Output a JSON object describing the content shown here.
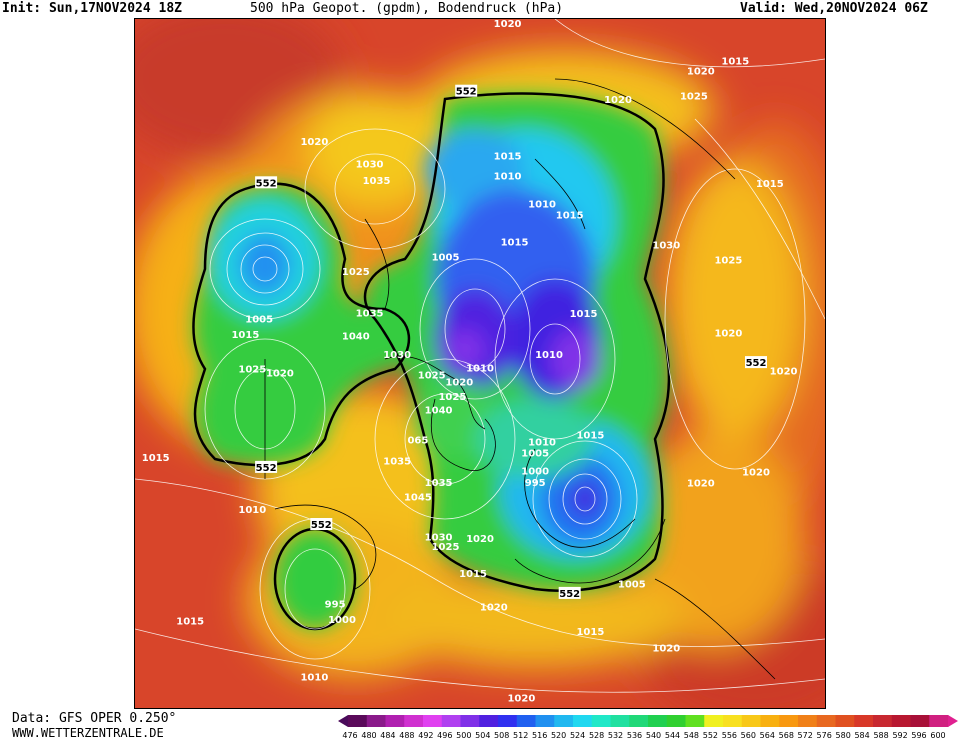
{
  "header": {
    "init": "Init: Sun,17NOV2024 18Z",
    "title": "500 hPa Geopot. (gpdm), Bodendruck (hPa)",
    "valid": "Valid: Wed,20NOV2024 06Z"
  },
  "footer": {
    "data_source": "Data: GFS OPER 0.250°",
    "website": "WWW.WETTERZENTRALE.DE"
  },
  "colorbar": {
    "ticks": [
      "476",
      "480",
      "484",
      "488",
      "492",
      "496",
      "500",
      "504",
      "508",
      "512",
      "516",
      "520",
      "524",
      "528",
      "532",
      "536",
      "540",
      "544",
      "548",
      "552",
      "556",
      "560",
      "564",
      "568",
      "572",
      "576",
      "580",
      "584",
      "588",
      "592",
      "596",
      "600"
    ],
    "colors": [
      "#5a0a5a",
      "#8a1a8a",
      "#b020b0",
      "#d030d0",
      "#e040f0",
      "#b040f0",
      "#8030e8",
      "#5020e0",
      "#3030f0",
      "#2060f0",
      "#2090f0",
      "#20b8f0",
      "#20d8f0",
      "#20e8c8",
      "#20e0a0",
      "#20d878",
      "#20d050",
      "#30d030",
      "#60e020",
      "#f0f020",
      "#f8e020",
      "#f8c818",
      "#f8b010",
      "#f89810",
      "#f08018",
      "#e86820",
      "#e05020",
      "#d83828",
      "#c82830",
      "#b81830",
      "#a81038",
      "#d02080"
    ],
    "left_arrow_color": "#4a0a5a",
    "right_arrow_color": "#e02090"
  },
  "map": {
    "geopotential_contour_label": "552",
    "pressure_labels": [
      {
        "text": "1020",
        "nx": 0.54,
        "ny": 0.006
      },
      {
        "text": "1015",
        "nx": 0.87,
        "ny": 0.06
      },
      {
        "text": "1020",
        "nx": 0.82,
        "ny": 0.075
      },
      {
        "text": "552",
        "nx": 0.48,
        "ny": 0.104
      },
      {
        "text": "1020",
        "nx": 0.7,
        "ny": 0.116
      },
      {
        "text": "1025",
        "nx": 0.81,
        "ny": 0.111
      },
      {
        "text": "1020",
        "nx": 0.26,
        "ny": 0.177
      },
      {
        "text": "1015",
        "nx": 0.54,
        "ny": 0.198
      },
      {
        "text": "1030",
        "nx": 0.34,
        "ny": 0.21
      },
      {
        "text": "1010",
        "nx": 0.54,
        "ny": 0.227
      },
      {
        "text": "1035",
        "nx": 0.35,
        "ny": 0.234
      },
      {
        "text": "552",
        "nx": 0.19,
        "ny": 0.237
      },
      {
        "text": "1015",
        "nx": 0.92,
        "ny": 0.238
      },
      {
        "text": "1010",
        "nx": 0.59,
        "ny": 0.268
      },
      {
        "text": "1015",
        "nx": 0.63,
        "ny": 0.284
      },
      {
        "text": "1015",
        "nx": 0.55,
        "ny": 0.323
      },
      {
        "text": "1030",
        "nx": 0.77,
        "ny": 0.327
      },
      {
        "text": "1005",
        "nx": 0.45,
        "ny": 0.345
      },
      {
        "text": "1025",
        "nx": 0.86,
        "ny": 0.349
      },
      {
        "text": "1025",
        "nx": 0.32,
        "ny": 0.366
      },
      {
        "text": "1035",
        "nx": 0.34,
        "ny": 0.426
      },
      {
        "text": "1005",
        "nx": 0.18,
        "ny": 0.435
      },
      {
        "text": "1015",
        "nx": 0.65,
        "ny": 0.427
      },
      {
        "text": "1040",
        "nx": 0.32,
        "ny": 0.459
      },
      {
        "text": "1015",
        "nx": 0.16,
        "ny": 0.457
      },
      {
        "text": "1020",
        "nx": 0.86,
        "ny": 0.455
      },
      {
        "text": "1030",
        "nx": 0.38,
        "ny": 0.486
      },
      {
        "text": "1010",
        "nx": 0.6,
        "ny": 0.486
      },
      {
        "text": "552",
        "nx": 0.9,
        "ny": 0.498
      },
      {
        "text": "1025",
        "nx": 0.17,
        "ny": 0.507
      },
      {
        "text": "1020",
        "nx": 0.21,
        "ny": 0.513
      },
      {
        "text": "1010",
        "nx": 0.5,
        "ny": 0.506
      },
      {
        "text": "1025",
        "nx": 0.43,
        "ny": 0.516
      },
      {
        "text": "1020",
        "nx": 0.94,
        "ny": 0.51
      },
      {
        "text": "1020",
        "nx": 0.47,
        "ny": 0.526
      },
      {
        "text": "1025",
        "nx": 0.46,
        "ny": 0.547
      },
      {
        "text": "1040",
        "nx": 0.44,
        "ny": 0.567
      },
      {
        "text": "1015",
        "nx": 0.66,
        "ny": 0.603
      },
      {
        "text": "065",
        "nx": 0.41,
        "ny": 0.61
      },
      {
        "text": "1010",
        "nx": 0.59,
        "ny": 0.613
      },
      {
        "text": "1005",
        "nx": 0.58,
        "ny": 0.629
      },
      {
        "text": "1015",
        "nx": 0.03,
        "ny": 0.636
      },
      {
        "text": "1035",
        "nx": 0.38,
        "ny": 0.641
      },
      {
        "text": "552",
        "nx": 0.19,
        "ny": 0.65
      },
      {
        "text": "1000",
        "nx": 0.58,
        "ny": 0.655
      },
      {
        "text": "1020",
        "nx": 0.9,
        "ny": 0.657
      },
      {
        "text": "995",
        "nx": 0.58,
        "ny": 0.672
      },
      {
        "text": "1035",
        "nx": 0.44,
        "ny": 0.672
      },
      {
        "text": "1020",
        "nx": 0.82,
        "ny": 0.673
      },
      {
        "text": "1045",
        "nx": 0.41,
        "ny": 0.693
      },
      {
        "text": "1010",
        "nx": 0.17,
        "ny": 0.711
      },
      {
        "text": "552",
        "nx": 0.27,
        "ny": 0.733
      },
      {
        "text": "1030",
        "nx": 0.44,
        "ny": 0.751
      },
      {
        "text": "1020",
        "nx": 0.5,
        "ny": 0.753
      },
      {
        "text": "1025",
        "nx": 0.45,
        "ny": 0.765
      },
      {
        "text": "1015",
        "nx": 0.49,
        "ny": 0.804
      },
      {
        "text": "1005",
        "nx": 0.72,
        "ny": 0.819
      },
      {
        "text": "552",
        "nx": 0.63,
        "ny": 0.833
      },
      {
        "text": "995",
        "nx": 0.29,
        "ny": 0.848
      },
      {
        "text": "1020",
        "nx": 0.52,
        "ny": 0.853
      },
      {
        "text": "1000",
        "nx": 0.3,
        "ny": 0.871
      },
      {
        "text": "1015",
        "nx": 0.08,
        "ny": 0.873
      },
      {
        "text": "1015",
        "nx": 0.66,
        "ny": 0.888
      },
      {
        "text": "1020",
        "nx": 0.77,
        "ny": 0.912
      },
      {
        "text": "1010",
        "nx": 0.26,
        "ny": 0.954
      },
      {
        "text": "1020",
        "nx": 0.56,
        "ny": 0.985
      }
    ]
  }
}
